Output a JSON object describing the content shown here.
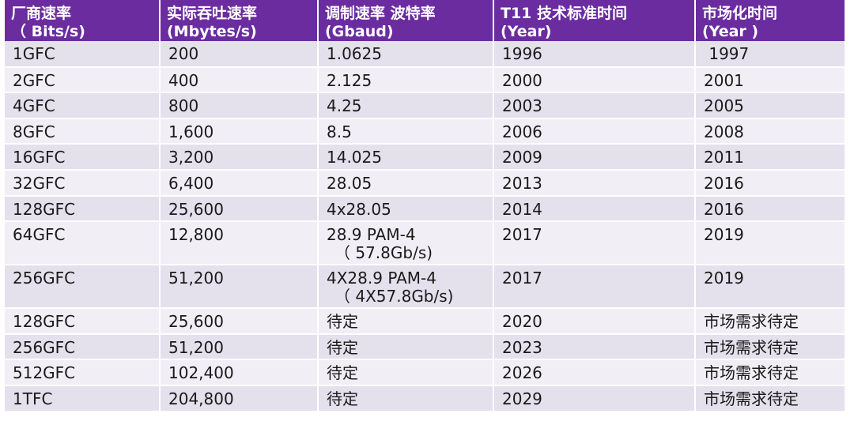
{
  "header": [
    {
      "line1": "厂商速率",
      "line2": "（ Bits/s)"
    },
    {
      "line1": "实际吞吐速率",
      "line2": "(Mbytes/s)"
    },
    {
      "line1": "调制速率 波特率",
      "line2": "(Gbaud)"
    },
    {
      "line1": "T11 技术标准时间",
      "line2": "(Year)"
    },
    {
      "line1": "市场化时间",
      "line2": "(Year )"
    }
  ],
  "rows": [
    {
      "rate": "1GFC",
      "throughput": "200",
      "baud": "1.0625",
      "baud_sub": "",
      "t11": "1996",
      "market": " 1997"
    },
    {
      "rate": "2GFC",
      "throughput": "400",
      "baud": "2.125",
      "baud_sub": "",
      "t11": "2000",
      "market": "2001"
    },
    {
      "rate": "4GFC",
      "throughput": "800",
      "baud": "4.25",
      "baud_sub": "",
      "t11": "2003",
      "market": "2005"
    },
    {
      "rate": "8GFC",
      "throughput": "1,600",
      "baud": "8.5",
      "baud_sub": "",
      "t11": "2006",
      "market": "2008"
    },
    {
      "rate": "16GFC",
      "throughput": "3,200",
      "baud": "14.025",
      "baud_sub": "",
      "t11": "2009",
      "market": "2011"
    },
    {
      "rate": "32GFC",
      "throughput": "6,400",
      "baud": "28.05",
      "baud_sub": "",
      "t11": "2013",
      "market": "2016"
    },
    {
      "rate": "128GFC",
      "throughput": "25,600",
      "baud": "4x28.05",
      "baud_sub": "",
      "t11": "2014",
      "market": "2016"
    },
    {
      "rate": "64GFC",
      "throughput": "12,800",
      "baud": "28.9 PAM-4",
      "baud_sub": "（ 57.8Gb/s)",
      "t11": "2017",
      "market": "2019"
    },
    {
      "rate": "256GFC",
      "throughput": "51,200",
      "baud": "4X28.9 PAM-4",
      "baud_sub": "（ 4X57.8Gb/s)",
      "t11": "2017",
      "market": "2019"
    },
    {
      "rate": "128GFC",
      "throughput": "25,600",
      "baud": "待定",
      "baud_sub": "",
      "t11": "2020",
      "market": "市场需求待定"
    },
    {
      "rate": "256GFC",
      "throughput": "51,200",
      "baud": "待定",
      "baud_sub": "",
      "t11": "2023",
      "market": "市场需求待定"
    },
    {
      "rate": "512GFC",
      "throughput": "102,400",
      "baud": "待定",
      "baud_sub": "",
      "t11": "2026",
      "market": "市场需求待定"
    },
    {
      "rate": "1TFC",
      "throughput": "204,800",
      "baud": "待定",
      "baud_sub": "",
      "t11": "2029",
      "market": "市场需求待定"
    }
  ]
}
